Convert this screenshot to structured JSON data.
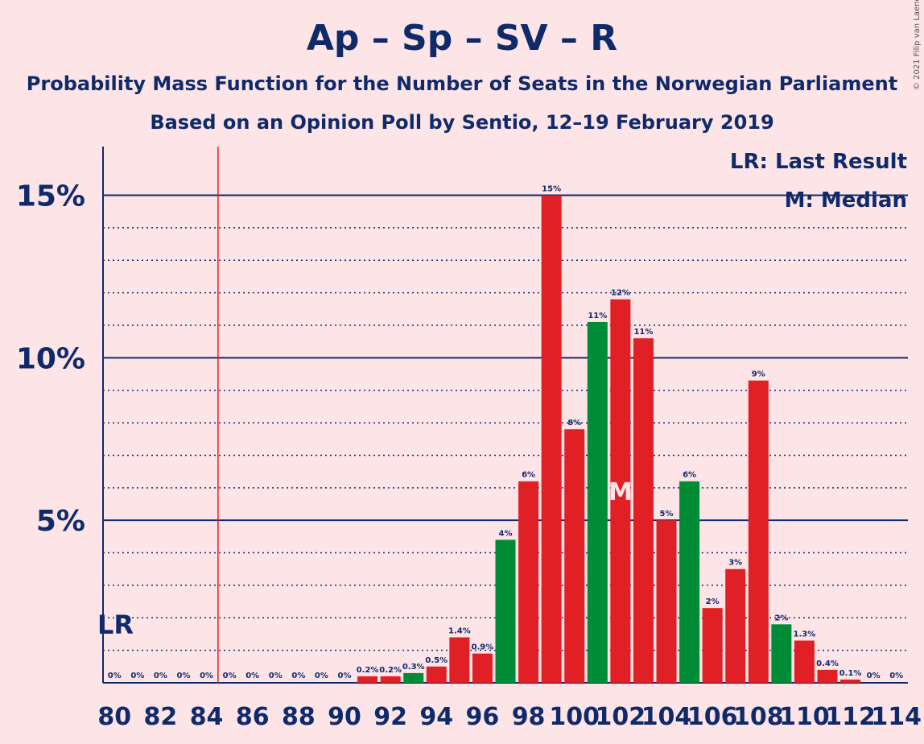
{
  "header": {
    "title": "Ap – Sp – SV – R",
    "subtitle1": "Probability Mass Function for the Number of Seats in the Norwegian Parliament",
    "subtitle2": "Based on an Opinion Poll by Sentio, 12–19 February 2019",
    "credit": "© 2021 Filip van Laenen"
  },
  "colors": {
    "background": "#fde4e6",
    "text": "#0f2a6b",
    "red": "#e02024",
    "green": "#008c36",
    "last_result_line": "#e02024"
  },
  "chart_data": {
    "type": "bar",
    "x": [
      80,
      81,
      82,
      83,
      84,
      85,
      86,
      87,
      88,
      89,
      90,
      91,
      92,
      93,
      94,
      95,
      96,
      97,
      98,
      99,
      100,
      101,
      102,
      103,
      104,
      105,
      106,
      107,
      108,
      109,
      110,
      111,
      112,
      113,
      114
    ],
    "values": [
      0,
      0,
      0,
      0,
      0,
      0,
      0,
      0,
      0,
      0,
      0,
      0.2,
      0.2,
      0.3,
      0.5,
      1.4,
      0.9,
      4.4,
      6.2,
      15.0,
      7.8,
      11.1,
      11.8,
      10.6,
      5.0,
      6.2,
      2.3,
      3.5,
      9.3,
      1.8,
      1.3,
      0.4,
      0.1,
      0,
      0
    ],
    "labels": [
      "0%",
      "0%",
      "0%",
      "0%",
      "0%",
      "0%",
      "0%",
      "0%",
      "0%",
      "0%",
      "0%",
      "0.2%",
      "0.2%",
      "0.3%",
      "0.5%",
      "1.4%",
      "0.9%",
      "4%",
      "6%",
      "15%",
      "8%",
      "11%",
      "12%",
      "11%",
      "5%",
      "6%",
      "2%",
      "3%",
      "9%",
      "2%",
      "1.3%",
      "0.4%",
      "0.1%",
      "0%",
      "0%"
    ],
    "colors": [
      "red",
      "red",
      "red",
      "red",
      "red",
      "red",
      "red",
      "red",
      "red",
      "red",
      "red",
      "red",
      "red",
      "green",
      "red",
      "red",
      "red",
      "green",
      "red",
      "red",
      "red",
      "green",
      "red",
      "red",
      "red",
      "green",
      "red",
      "red",
      "red",
      "green",
      "red",
      "red",
      "red",
      "red",
      "red"
    ],
    "x_tick_labels": [
      "80",
      "82",
      "84",
      "86",
      "88",
      "90",
      "92",
      "94",
      "96",
      "98",
      "100",
      "102",
      "104",
      "106",
      "108",
      "110",
      "112",
      "114"
    ],
    "y_tick_labels": [
      "5%",
      "10%",
      "15%"
    ],
    "ylim": [
      0,
      16.5
    ],
    "xlim": [
      79.5,
      114.5
    ],
    "last_result": 84.5,
    "last_result_label": "LR",
    "median": 102,
    "median_label": "M",
    "legend": [
      "LR: Last Result",
      "M: Median"
    ],
    "legend_position": "top-right",
    "grid": true
  }
}
